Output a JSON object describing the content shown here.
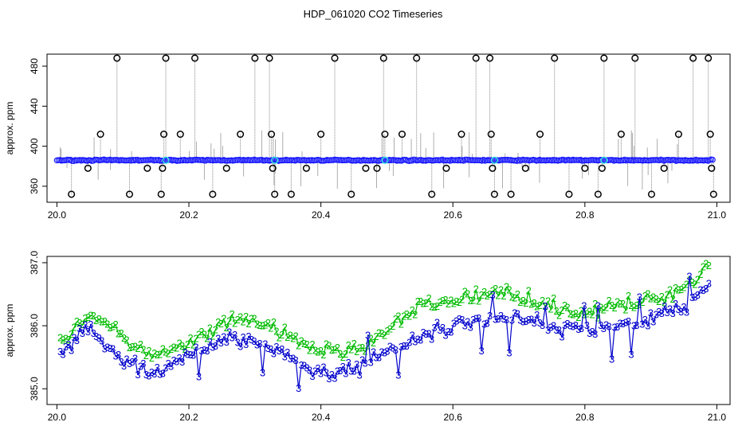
{
  "title": "HDP_061020  CO2 Timeseries",
  "chart_data": [
    {
      "type": "scatter",
      "ylabel": "approx. ppm",
      "xlabel": "",
      "xlim": [
        19.985,
        21.02
      ],
      "ylim": [
        344,
        492
      ],
      "x_ticks": [
        "20.0",
        "20.2",
        "20.4",
        "20.6",
        "20.8",
        "21.0"
      ],
      "y_ticks": [
        "360",
        "400",
        "440",
        "480"
      ],
      "baseline_ppm": 386,
      "series": [
        {
          "values": [
            [
              20.022,
              352
            ],
            [
              20.047,
              378
            ],
            [
              20.066,
              412
            ],
            [
              20.091,
              488
            ],
            [
              20.11,
              352
            ],
            [
              20.137,
              378
            ],
            [
              20.158,
              352
            ],
            [
              20.16,
              378
            ],
            [
              20.162,
              412
            ],
            [
              20.165,
              488
            ],
            [
              20.187,
              412
            ],
            [
              20.209,
              488
            ],
            [
              20.236,
              352
            ],
            [
              20.257,
              378
            ],
            [
              20.278,
              412
            ],
            [
              20.3,
              488
            ],
            [
              20.322,
              488
            ],
            [
              20.325,
              412
            ],
            [
              20.327,
              378
            ],
            [
              20.33,
              352
            ],
            [
              20.355,
              352
            ],
            [
              20.378,
              378
            ],
            [
              20.4,
              412
            ],
            [
              20.421,
              488
            ],
            [
              20.446,
              352
            ],
            [
              20.468,
              378
            ],
            [
              20.485,
              378
            ],
            [
              20.495,
              488
            ],
            [
              20.497,
              412
            ],
            [
              20.523,
              412
            ],
            [
              20.545,
              488
            ],
            [
              20.568,
              352
            ],
            [
              20.59,
              378
            ],
            [
              20.613,
              412
            ],
            [
              20.635,
              488
            ],
            [
              20.656,
              488
            ],
            [
              20.658,
              412
            ],
            [
              20.66,
              378
            ],
            [
              20.663,
              352
            ],
            [
              20.688,
              352
            ],
            [
              20.71,
              378
            ],
            [
              20.732,
              412
            ],
            [
              20.754,
              488
            ],
            [
              20.776,
              352
            ],
            [
              20.8,
              378
            ],
            [
              20.82,
              352
            ],
            [
              20.826,
              378
            ],
            [
              20.829,
              488
            ],
            [
              20.855,
              412
            ],
            [
              20.876,
              488
            ],
            [
              20.901,
              352
            ],
            [
              20.92,
              378
            ],
            [
              20.942,
              412
            ],
            [
              20.964,
              488
            ],
            [
              20.987,
              488
            ],
            [
              20.99,
              412
            ],
            [
              20.992,
              378
            ],
            [
              20.995,
              352
            ]
          ]
        },
        {
          "values": [
            [
              20.165,
              386
            ],
            [
              20.33,
              386
            ],
            [
              20.497,
              386
            ],
            [
              20.663,
              386
            ],
            [
              20.829,
              386
            ]
          ]
        }
      ]
    },
    {
      "type": "scatter",
      "ylabel": "approx. ppm",
      "xlabel": "",
      "xlim": [
        19.985,
        21.02
      ],
      "ylim": [
        384.75,
        387.1
      ],
      "x_ticks": [
        "20.0",
        "20.2",
        "20.4",
        "20.6",
        "20.8",
        "21.0"
      ],
      "y_ticks": [
        "385.0",
        "386.0",
        "387.0"
      ],
      "series": [
        {
          "label": "2",
          "color": "#00bb00",
          "x": [
            20.0,
            20.05,
            20.1,
            20.15,
            20.2,
            20.25,
            20.3,
            20.35,
            20.4,
            20.45,
            20.5,
            20.55,
            20.6,
            20.65,
            20.7,
            20.75,
            20.8,
            20.85,
            20.9,
            20.95,
            20.99
          ],
          "values": [
            385.7,
            386.2,
            385.8,
            385.5,
            385.7,
            386.0,
            386.1,
            385.8,
            385.6,
            385.6,
            385.9,
            386.3,
            386.4,
            386.5,
            386.5,
            386.3,
            386.2,
            386.3,
            386.4,
            386.6,
            387.0
          ]
        },
        {
          "label": "3",
          "color": "#0000cc",
          "x": [
            20.0,
            20.05,
            20.1,
            20.15,
            20.2,
            20.25,
            20.3,
            20.35,
            20.4,
            20.45,
            20.5,
            20.55,
            20.6,
            20.65,
            20.7,
            20.75,
            20.8,
            20.85,
            20.9,
            20.95,
            20.99
          ],
          "values": [
            385.5,
            386.0,
            385.4,
            385.2,
            385.5,
            385.8,
            385.8,
            385.5,
            385.2,
            385.3,
            385.6,
            385.8,
            386.0,
            386.1,
            386.1,
            386.0,
            385.9,
            386.0,
            386.1,
            386.3,
            386.6
          ]
        }
      ]
    }
  ]
}
